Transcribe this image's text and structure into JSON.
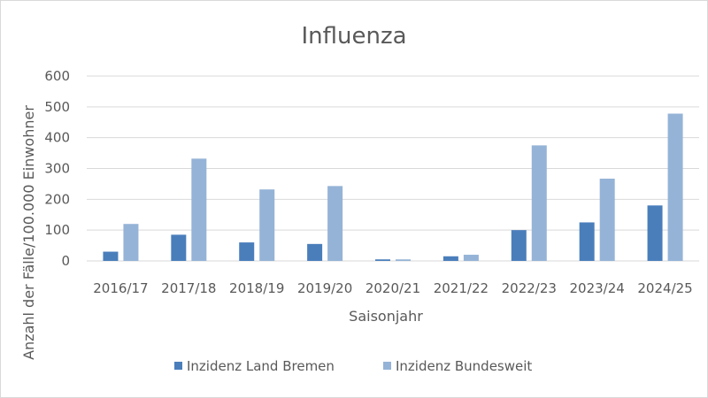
{
  "chart_data": {
    "type": "bar",
    "title": "Influenza",
    "xlabel": "Saisonjahr",
    "ylabel": "Anzahl der Fälle/100.000 Einwohner",
    "categories": [
      "2016/17",
      "2017/18",
      "2018/19",
      "2019/20",
      "2020/21",
      "2021/22",
      "2022/23",
      "2023/24",
      "2024/25"
    ],
    "series": [
      {
        "name": "Inzidenz Land Bremen",
        "color": "#4a7ebb",
        "values": [
          30,
          85,
          60,
          55,
          5,
          15,
          100,
          125,
          180
        ]
      },
      {
        "name": "Inzidenz Bundesweit",
        "color": "#95b3d7",
        "values": [
          120,
          332,
          232,
          243,
          5,
          20,
          375,
          267,
          478
        ]
      }
    ],
    "ylim": [
      0,
      600
    ],
    "yticks": [
      0,
      100,
      200,
      300,
      400,
      500,
      600
    ],
    "grid": true,
    "legend_position": "bottom"
  }
}
